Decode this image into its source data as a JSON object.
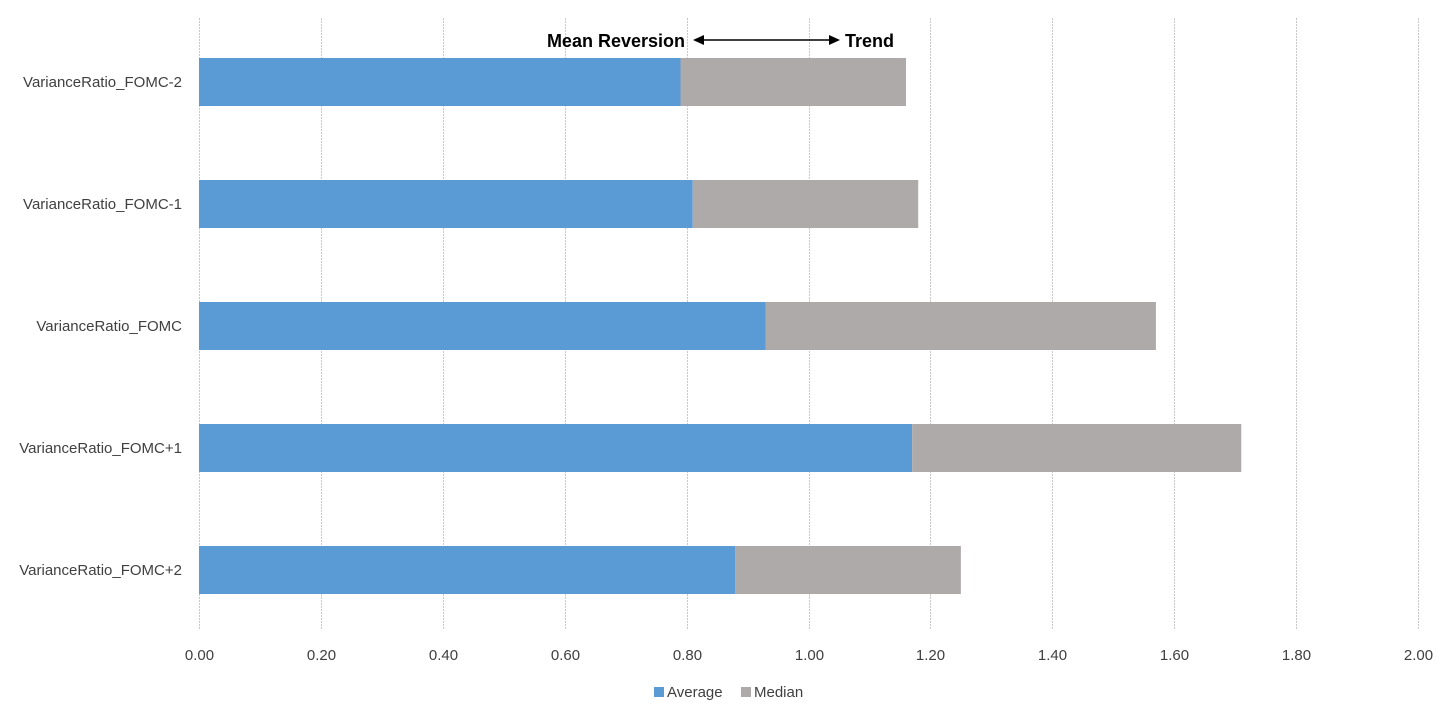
{
  "chart_data": {
    "type": "bar",
    "orientation": "horizontal",
    "stacked": true,
    "title": "",
    "xlabel": "",
    "ylabel": "",
    "xlim": [
      0,
      2
    ],
    "x_ticks": [
      "0.00",
      "0.20",
      "0.40",
      "0.60",
      "0.80",
      "1.00",
      "1.20",
      "1.40",
      "1.60",
      "1.80",
      "2.00"
    ],
    "x_tick_values": [
      0,
      0.2,
      0.4,
      0.6,
      0.8,
      1.0,
      1.2,
      1.4,
      1.6,
      1.8,
      2.0
    ],
    "grid": true,
    "legend_position": "bottom",
    "categories": [
      "VarianceRatio_FOMC-2",
      "VarianceRatio_FOMC-1",
      "VarianceRatio_FOMC",
      "VarianceRatio_FOMC+1",
      "VarianceRatio_FOMC+2"
    ],
    "series": [
      {
        "name": "Average",
        "color": "#5b9bd5",
        "values": [
          0.79,
          0.81,
          0.93,
          1.17,
          0.88
        ]
      },
      {
        "name": "Median",
        "color": "#aeaaaa",
        "values": [
          0.37,
          0.37,
          0.64,
          0.54,
          0.37
        ]
      }
    ],
    "annotations": {
      "left": "Mean Reversion",
      "right": "Trend"
    }
  }
}
